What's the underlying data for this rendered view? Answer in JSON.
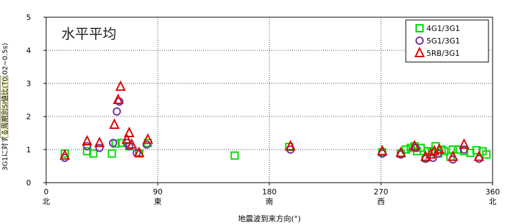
{
  "chart_data": {
    "type": "scatter",
    "title": "水平平均",
    "xlabel": "地震波到来方向(°)",
    "ylabel": "3G1に対する周期別SI値比(T0.02~0.5s)",
    "xlim": [
      0,
      360
    ],
    "ylim": [
      0,
      5
    ],
    "x_ticks": [
      "0",
      "90",
      "180",
      "270",
      "360"
    ],
    "y_ticks": [
      "0",
      "1",
      "2",
      "3",
      "4",
      "5"
    ],
    "direction_labels": [
      "北",
      "東",
      "南",
      "西",
      "北"
    ],
    "grid": true,
    "legend_position": "top-right",
    "series": [
      {
        "name": "4G1/3G1",
        "marker": "square",
        "color": "#00dd00",
        "points": [
          [
            15,
            0.88
          ],
          [
            33,
            0.95
          ],
          [
            38,
            0.88
          ],
          [
            53,
            0.88
          ],
          [
            56,
            1.18
          ],
          [
            61,
            1.2
          ],
          [
            67,
            1.1
          ],
          [
            75,
            0.88
          ],
          [
            82,
            1.2
          ],
          [
            152,
            0.82
          ],
          [
            196,
            1.08
          ],
          [
            271,
            0.92
          ],
          [
            286,
            0.88
          ],
          [
            290,
            1.0
          ],
          [
            294,
            1.05
          ],
          [
            297,
            1.1
          ],
          [
            299,
            0.95
          ],
          [
            302,
            1.05
          ],
          [
            306,
            0.75
          ],
          [
            308,
            0.95
          ],
          [
            311,
            0.92
          ],
          [
            314,
            1.1
          ],
          [
            316,
            0.88
          ],
          [
            319,
            1.0
          ],
          [
            321,
            0.95
          ],
          [
            326,
            0.78
          ],
          [
            328,
            1.0
          ],
          [
            332,
            1.0
          ],
          [
            337,
            0.95
          ],
          [
            342,
            0.9
          ],
          [
            347,
            0.98
          ],
          [
            352,
            0.95
          ],
          [
            355,
            0.85
          ]
        ]
      },
      {
        "name": "5G1/3G1",
        "marker": "circle",
        "color": "#7030a0",
        "points": [
          [
            15,
            0.75
          ],
          [
            33,
            1.1
          ],
          [
            43,
            1.05
          ],
          [
            54,
            1.2
          ],
          [
            57,
            2.15
          ],
          [
            59,
            2.45
          ],
          [
            65,
            1.2
          ],
          [
            67,
            1.1
          ],
          [
            73,
            0.9
          ],
          [
            81,
            1.15
          ],
          [
            197,
            1.0
          ],
          [
            271,
            0.88
          ],
          [
            286,
            0.85
          ],
          [
            298,
            1.05
          ],
          [
            306,
            0.72
          ],
          [
            312,
            0.75
          ],
          [
            316,
            0.88
          ],
          [
            328,
            0.7
          ],
          [
            337,
            1.0
          ],
          [
            349,
            0.72
          ]
        ]
      },
      {
        "name": "5RB/3G1",
        "marker": "triangle",
        "color": "#e00000",
        "points": [
          [
            15,
            0.82
          ],
          [
            33,
            1.25
          ],
          [
            43,
            1.2
          ],
          [
            55,
            1.75
          ],
          [
            58,
            2.5
          ],
          [
            60,
            2.9
          ],
          [
            65,
            1.3
          ],
          [
            67,
            1.5
          ],
          [
            69,
            1.15
          ],
          [
            75,
            0.9
          ],
          [
            82,
            1.3
          ],
          [
            197,
            1.1
          ],
          [
            271,
            0.95
          ],
          [
            286,
            0.9
          ],
          [
            297,
            1.1
          ],
          [
            306,
            0.78
          ],
          [
            310,
            0.85
          ],
          [
            313,
            0.95
          ],
          [
            317,
            1.0
          ],
          [
            328,
            0.78
          ],
          [
            337,
            1.15
          ],
          [
            349,
            0.78
          ]
        ]
      }
    ]
  }
}
